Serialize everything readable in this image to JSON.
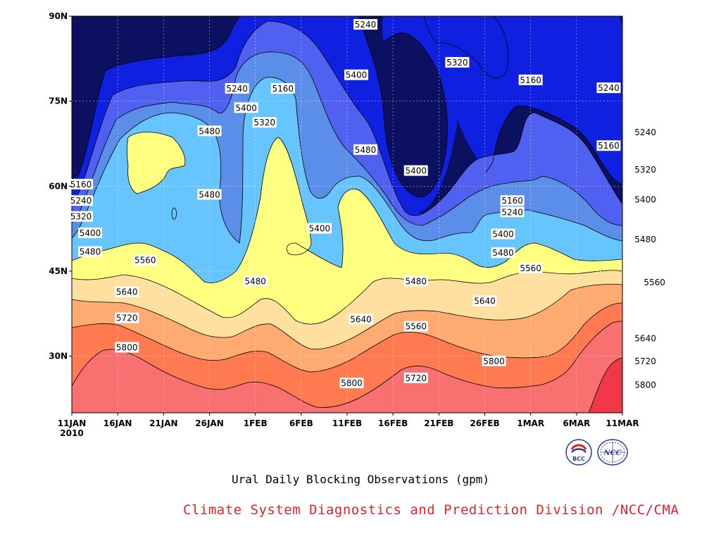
{
  "chart_data": {
    "type": "contour",
    "subtitle": "Ural Daily Blocking Observations (gpm)",
    "credit": "Climate System Diagnostics and Prediction Division /NCC/CMA",
    "x_ticks": [
      "11JAN",
      "16JAN",
      "21JAN",
      "26JAN",
      "1FEB",
      "6FEB",
      "11FEB",
      "16FEB",
      "21FEB",
      "26FEB",
      "1MAR",
      "6MAR",
      "11MAR"
    ],
    "x_year_label": "2010",
    "y_ticks": [
      "30N",
      "45N",
      "60N",
      "75N",
      "90N"
    ],
    "y_tick_values": [
      30,
      45,
      60,
      75,
      90
    ],
    "ylim": [
      20,
      90
    ],
    "grid": true,
    "levels": [
      5160,
      5240,
      5320,
      5400,
      5480,
      5560,
      5640,
      5720,
      5800
    ],
    "level_colors": [
      "#0c1060",
      "#1020e0",
      "#5060f0",
      "#5a8ee8",
      "#66c4ff",
      "#ffff80",
      "#ffe0a0",
      "#ffaa70",
      "#ff7a50",
      "#f87070",
      "#f03848"
    ],
    "contour_labels": [
      {
        "day": 7,
        "lat": 88.5,
        "text": "5240"
      },
      {
        "day": 17,
        "lat": 81.8,
        "text": "5320"
      },
      {
        "day": 6,
        "lat": 79.6,
        "text": "5400"
      },
      {
        "day": -2,
        "lat": 77.2,
        "text": "5160"
      },
      {
        "day": -7,
        "lat": 77.2,
        "text": "5240"
      },
      {
        "day": 33.5,
        "lat": 77.3,
        "text": "5240"
      },
      {
        "day": 25,
        "lat": 78.7,
        "text": "5160"
      },
      {
        "day": -6,
        "lat": 73.8,
        "text": "5400"
      },
      {
        "day": -4,
        "lat": 71.2,
        "text": "5320"
      },
      {
        "day": -10,
        "lat": 69.7,
        "text": "5480"
      },
      {
        "day": 7,
        "lat": 66.4,
        "text": "5480"
      },
      {
        "day": 33.5,
        "lat": 67.1,
        "text": "5160"
      },
      {
        "day": 37.5,
        "lat": 69.5,
        "text": "5240"
      },
      {
        "day": 12.5,
        "lat": 62.7,
        "text": "5400"
      },
      {
        "day": 37.5,
        "lat": 62.9,
        "text": "5320"
      },
      {
        "day": -24,
        "lat": 60.3,
        "text": "5160"
      },
      {
        "day": -24,
        "lat": 57.4,
        "text": "5240"
      },
      {
        "day": -24,
        "lat": 54.6,
        "text": "5320"
      },
      {
        "day": -10,
        "lat": 58.5,
        "text": "5480"
      },
      {
        "day": 2,
        "lat": 52.5,
        "text": "5400"
      },
      {
        "day": 23,
        "lat": 57.4,
        "text": "5160"
      },
      {
        "day": 23,
        "lat": 55.4,
        "text": "5240"
      },
      {
        "day": 37.5,
        "lat": 57.6,
        "text": "5400"
      },
      {
        "day": -23,
        "lat": 51.7,
        "text": "5400"
      },
      {
        "day": 22,
        "lat": 51.5,
        "text": "5400"
      },
      {
        "day": 37.5,
        "lat": 50.6,
        "text": "5480"
      },
      {
        "day": -23,
        "lat": 48.4,
        "text": "5480"
      },
      {
        "day": -17,
        "lat": 46.9,
        "text": "5560"
      },
      {
        "day": -5,
        "lat": 43.2,
        "text": "5480"
      },
      {
        "day": 12.5,
        "lat": 43.2,
        "text": "5480"
      },
      {
        "day": 22,
        "lat": 48.2,
        "text": "5480"
      },
      {
        "day": 25,
        "lat": 45.5,
        "text": "5560"
      },
      {
        "day": 38.5,
        "lat": 43.0,
        "text": "5560"
      },
      {
        "day": -19,
        "lat": 41.3,
        "text": "5640"
      },
      {
        "day": 20,
        "lat": 39.7,
        "text": "5640"
      },
      {
        "day": 6.5,
        "lat": 36.5,
        "text": "5640"
      },
      {
        "day": 12.5,
        "lat": 35.2,
        "text": "5560"
      },
      {
        "day": -19,
        "lat": 36.7,
        "text": "5720"
      },
      {
        "day": 37.5,
        "lat": 33.1,
        "text": "5640"
      },
      {
        "day": -19,
        "lat": 31.5,
        "text": "5800"
      },
      {
        "day": 21,
        "lat": 29.1,
        "text": "5800"
      },
      {
        "day": 37.5,
        "lat": 29.1,
        "text": "5720"
      },
      {
        "day": 12.5,
        "lat": 26.1,
        "text": "5720"
      },
      {
        "day": 5.5,
        "lat": 25.2,
        "text": "5800"
      },
      {
        "day": 37.5,
        "lat": 24.9,
        "text": "5800"
      }
    ]
  },
  "logos": {
    "left_text": "BCC",
    "right_text": "NCC"
  }
}
